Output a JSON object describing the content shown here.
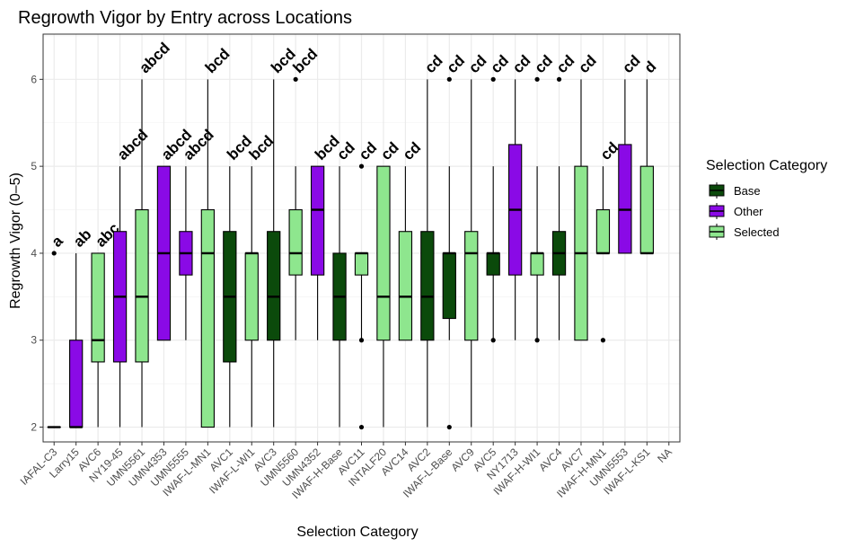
{
  "chart_data": {
    "type": "box",
    "title": "Regrowth Vigor by Entry across Locations",
    "xlabel": "Selection Category",
    "ylabel": "Regrowth Vigor (0–5)",
    "ylim": [
      1.83,
      6.52
    ],
    "yticks": [
      2,
      3,
      4,
      5,
      6
    ],
    "grid": true,
    "legend": {
      "title": "Selection Category",
      "position": "right",
      "entries": [
        {
          "name": "Base",
          "color": "#0b4a0b"
        },
        {
          "name": "Other",
          "color": "#8a0ae6"
        },
        {
          "name": "Selected",
          "color": "#8ee68e"
        }
      ]
    },
    "categories": [
      "IAFAL-C3",
      "Larry15",
      "AVC6",
      "NY19-45",
      "UMN5561",
      "UMN4353",
      "UMN5555",
      "IWAF-L-MN1",
      "AVC1",
      "IWAF-L-WI1",
      "AVC3",
      "UMN5560",
      "UMN4352",
      "IWAF-H-Base",
      "AVC11",
      "INTALF20",
      "AVC14",
      "AVC2",
      "IWAF-L-Base",
      "AVC9",
      "AVC5",
      "NY1713",
      "IWAF-H-WI1",
      "AVC4",
      "AVC7",
      "IWAF-H-MN1",
      "UMN5553",
      "IWAF-L-KS1",
      "NA"
    ],
    "boxes": [
      {
        "category": "IAFAL-C3",
        "group": "Base",
        "min": 2,
        "q1": 2,
        "median": 2,
        "q3": 2,
        "max": 2,
        "outliers": [
          4
        ],
        "letter": "a"
      },
      {
        "category": "Larry15",
        "group": "Other",
        "min": 2,
        "q1": 2,
        "median": 2,
        "q3": 3,
        "max": 4,
        "outliers": [],
        "letter": "ab"
      },
      {
        "category": "AVC6",
        "group": "Selected",
        "min": 2,
        "q1": 2.75,
        "median": 3,
        "q3": 4,
        "max": 4,
        "outliers": [],
        "letter": "abc"
      },
      {
        "category": "NY19-45",
        "group": "Other",
        "min": 2,
        "q1": 2.75,
        "median": 3.5,
        "q3": 4.25,
        "max": 5,
        "outliers": [],
        "letter": "abcd"
      },
      {
        "category": "UMN5561",
        "group": "Selected",
        "min": 2,
        "q1": 2.75,
        "median": 3.5,
        "q3": 4.5,
        "max": 6,
        "outliers": [],
        "letter": "abcd"
      },
      {
        "category": "UMN4353",
        "group": "Other",
        "min": 3,
        "q1": 3,
        "median": 4,
        "q3": 5,
        "max": 5,
        "outliers": [],
        "letter": "abcd"
      },
      {
        "category": "UMN5555",
        "group": "Other",
        "min": 3,
        "q1": 3.75,
        "median": 4,
        "q3": 4.25,
        "max": 5,
        "outliers": [],
        "letter": "abcd"
      },
      {
        "category": "IWAF-L-MN1",
        "group": "Selected",
        "min": 2,
        "q1": 2,
        "median": 4,
        "q3": 4.5,
        "max": 6,
        "outliers": [],
        "letter": "bcd"
      },
      {
        "category": "AVC1",
        "group": "Base",
        "min": 2,
        "q1": 2.75,
        "median": 3.5,
        "q3": 4.25,
        "max": 5,
        "outliers": [],
        "letter": "bcd"
      },
      {
        "category": "IWAF-L-WI1",
        "group": "Selected",
        "min": 2,
        "q1": 3,
        "median": 4,
        "q3": 4,
        "max": 5,
        "outliers": [],
        "letter": "bcd"
      },
      {
        "category": "AVC3",
        "group": "Base",
        "min": 2,
        "q1": 3,
        "median": 3.5,
        "q3": 4.25,
        "max": 6,
        "outliers": [],
        "letter": "bcd"
      },
      {
        "category": "UMN5560",
        "group": "Selected",
        "min": 3,
        "q1": 3.75,
        "median": 4,
        "q3": 4.5,
        "max": 5,
        "outliers": [
          6
        ],
        "letter": "bcd"
      },
      {
        "category": "UMN4352",
        "group": "Other",
        "min": 3,
        "q1": 3.75,
        "median": 4.5,
        "q3": 5,
        "max": 5,
        "outliers": [],
        "letter": "bcd"
      },
      {
        "category": "IWAF-H-Base",
        "group": "Base",
        "min": 2,
        "q1": 3,
        "median": 3.5,
        "q3": 4,
        "max": 5,
        "outliers": [],
        "letter": "cd"
      },
      {
        "category": "AVC11",
        "group": "Selected",
        "min": 3,
        "q1": 3.75,
        "median": 4,
        "q3": 4,
        "max": 4,
        "outliers": [
          5,
          3,
          2
        ],
        "letter": "cd"
      },
      {
        "category": "INTALF20",
        "group": "Selected",
        "min": 2,
        "q1": 3,
        "median": 3.5,
        "q3": 5,
        "max": 5,
        "outliers": [],
        "letter": "cd"
      },
      {
        "category": "AVC14",
        "group": "Selected",
        "min": 3,
        "q1": 3,
        "median": 3.5,
        "q3": 4.25,
        "max": 5,
        "outliers": [],
        "letter": "cd"
      },
      {
        "category": "AVC2",
        "group": "Base",
        "min": 2,
        "q1": 3,
        "median": 3.5,
        "q3": 4.25,
        "max": 6,
        "outliers": [],
        "letter": "cd"
      },
      {
        "category": "IWAF-L-Base",
        "group": "Base",
        "min": 3,
        "q1": 3.25,
        "median": 4,
        "q3": 4,
        "max": 5,
        "outliers": [
          6,
          2
        ],
        "letter": "cd"
      },
      {
        "category": "AVC9",
        "group": "Selected",
        "min": 2,
        "q1": 3,
        "median": 4,
        "q3": 4.25,
        "max": 6,
        "outliers": [],
        "letter": "cd"
      },
      {
        "category": "AVC5",
        "group": "Base",
        "min": 3,
        "q1": 3.75,
        "median": 4,
        "q3": 4,
        "max": 5,
        "outliers": [
          6,
          3
        ],
        "letter": "cd"
      },
      {
        "category": "NY1713",
        "group": "Other",
        "min": 3,
        "q1": 3.75,
        "median": 4.5,
        "q3": 5.25,
        "max": 6,
        "outliers": [],
        "letter": "cd"
      },
      {
        "category": "IWAF-H-WI1",
        "group": "Selected",
        "min": 3,
        "q1": 3.75,
        "median": 4,
        "q3": 4,
        "max": 5,
        "outliers": [
          6,
          3
        ],
        "letter": "cd"
      },
      {
        "category": "AVC4",
        "group": "Base",
        "min": 3,
        "q1": 3.75,
        "median": 4,
        "q3": 4.25,
        "max": 5,
        "outliers": [
          6
        ],
        "letter": "cd"
      },
      {
        "category": "AVC7",
        "group": "Selected",
        "min": 3,
        "q1": 3,
        "median": 4,
        "q3": 5,
        "max": 6,
        "outliers": [],
        "letter": "cd"
      },
      {
        "category": "IWAF-H-MN1",
        "group": "Selected",
        "min": 4,
        "q1": 4,
        "median": 4,
        "q3": 4.5,
        "max": 5,
        "outliers": [
          3
        ],
        "letter": "cd"
      },
      {
        "category": "UMN5553",
        "group": "Other",
        "min": 4,
        "q1": 4,
        "median": 4.5,
        "q3": 5.25,
        "max": 6,
        "outliers": [],
        "letter": "cd"
      },
      {
        "category": "IWAF-L-KS1",
        "group": "Selected",
        "min": 4,
        "q1": 4,
        "median": 4,
        "q3": 5,
        "max": 6,
        "outliers": [],
        "letter": "d"
      }
    ]
  }
}
